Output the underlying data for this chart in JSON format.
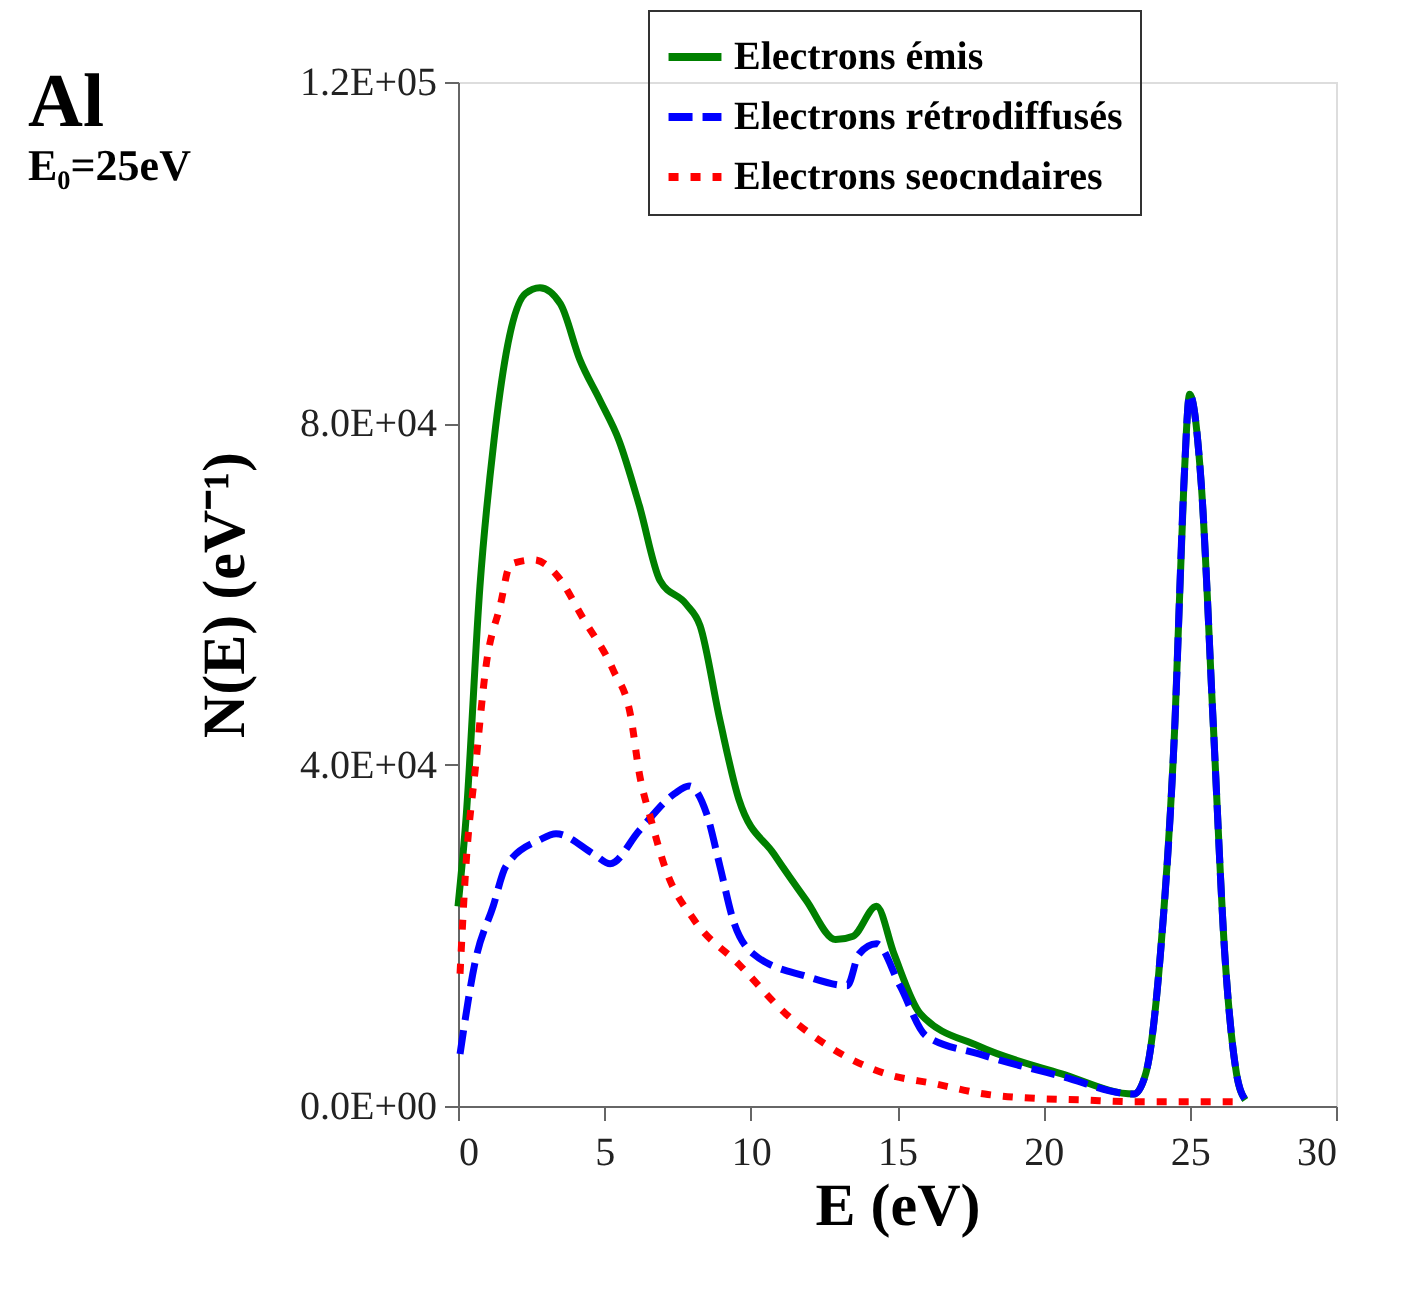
{
  "chart_data": {
    "type": "line",
    "xlabel": "E (eV)",
    "ylabel": "N(E)  (eV⁻¹)",
    "annotations": [
      "Al",
      "E₀=25eV"
    ],
    "xlim": [
      0,
      30
    ],
    "xticks": [
      0,
      5,
      10,
      15,
      20,
      25,
      30
    ],
    "ylim": [
      0,
      120000
    ],
    "yticks": [
      {
        "value": 0,
        "label": "0.0E+00"
      },
      {
        "value": 40000,
        "label": "4.0E+04"
      },
      {
        "value": 80000,
        "label": "8.0E+04"
      },
      {
        "value": 120000,
        "label": "1.2E+05"
      }
    ],
    "grid": false,
    "legend": "top right",
    "marker": "none",
    "series": [
      {
        "name": "Electrons émis",
        "color": "#008000",
        "line_style": "solid",
        "x": [
          0,
          0.27,
          0.75,
          1.23,
          1.64,
          2.3,
          2.8,
          3.5,
          4.17,
          4.85,
          5.5,
          6.2,
          6.9,
          7.8,
          8.27,
          8.95,
          9.6,
          10.8,
          11.9,
          12.9,
          13.5,
          14.3,
          14.9,
          15.8,
          17.8,
          20.6,
          23.1,
          23.5,
          24.0,
          24.5,
          24.8,
          25.0,
          25.4,
          25.8,
          26.2,
          26.6,
          26.9
        ],
        "values": [
          23400,
          33500,
          60900,
          78000,
          88100,
          95200,
          95900,
          94000,
          87400,
          82700,
          78000,
          70300,
          61600,
          58800,
          56300,
          45200,
          35900,
          29500,
          24100,
          19500,
          19900,
          23400,
          17800,
          10800,
          7000,
          3800,
          1400,
          3800,
          17800,
          45200,
          72700,
          83400,
          72700,
          45200,
          17800,
          3800,
          700
        ]
      },
      {
        "name": "Electrons rétrodiffusés",
        "color": "#0000ff",
        "line_style": "dashed",
        "x": [
          0.07,
          0.6,
          1.2,
          1.64,
          2.8,
          3.35,
          4.65,
          5.2,
          6.2,
          7.4,
          7.9,
          8.5,
          8.95,
          9.4,
          10.1,
          11.9,
          13.3,
          13.7,
          14.3,
          15.1,
          16.0,
          17.8,
          20.6,
          23.1,
          23.5,
          24.0,
          24.5,
          24.8,
          25.0,
          25.4,
          25.8,
          26.2,
          26.6,
          26.9
        ],
        "values": [
          6100,
          17100,
          23400,
          28100,
          31200,
          31900,
          29500,
          28400,
          32300,
          36600,
          37500,
          34200,
          28100,
          21800,
          17800,
          15200,
          14100,
          17800,
          19000,
          14100,
          8200,
          6100,
          3500,
          1400,
          3800,
          17800,
          45200,
          72700,
          83400,
          72700,
          45200,
          17800,
          3800,
          700
        ]
      },
      {
        "name": "Electrons seocndaires",
        "color": "#ff0000",
        "line_style": "dotted",
        "x": [
          0.07,
          0.27,
          0.6,
          0.96,
          1.44,
          1.8,
          2.6,
          3.35,
          4.3,
          5.3,
          5.9,
          6.2,
          6.6,
          7.1,
          8.07,
          9.6,
          11.2,
          12.85,
          14.6,
          16.3,
          18.0,
          19.7,
          21.4,
          23.1,
          24.9,
          26.6
        ],
        "values": [
          15500,
          28100,
          39800,
          51600,
          58600,
          63500,
          64000,
          62300,
          57000,
          51100,
          45700,
          38900,
          33500,
          27700,
          21800,
          16600,
          10800,
          6600,
          3800,
          2600,
          1400,
          900,
          700,
          500,
          500,
          500
        ]
      }
    ]
  }
}
